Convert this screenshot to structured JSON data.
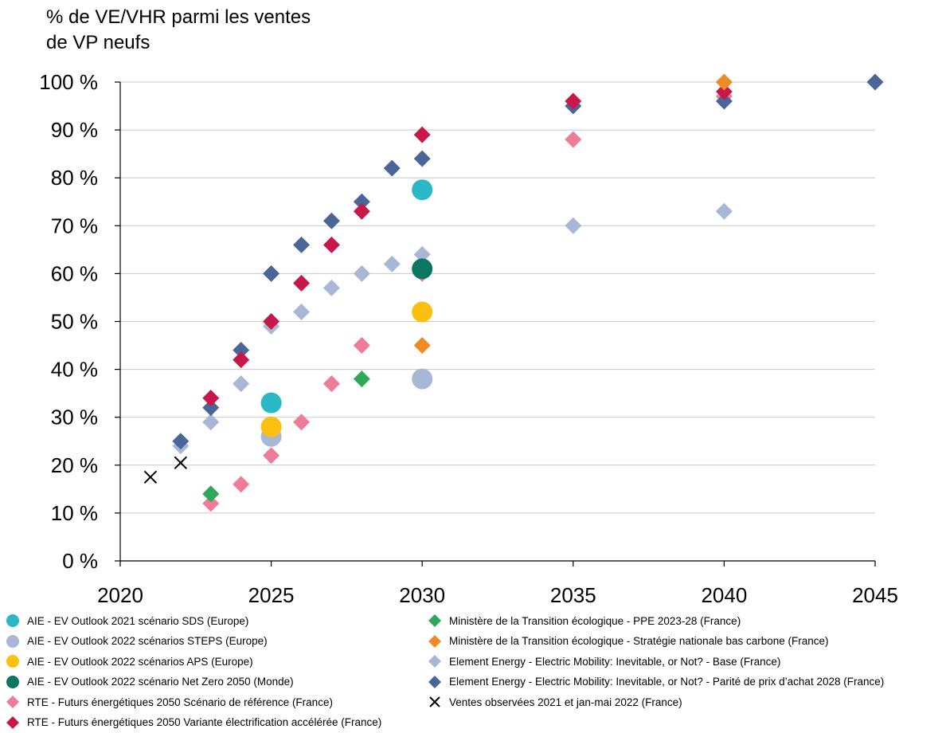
{
  "chart_data": {
    "type": "scatter",
    "title": "% de VE/VHR parmi les ventes\nde VP neufs",
    "xlabel": "",
    "ylabel": "",
    "xlim": [
      2020,
      2045
    ],
    "ylim": [
      0,
      100
    ],
    "x_ticks": [
      "2020",
      "2025",
      "2030",
      "2035",
      "2040",
      "2045"
    ],
    "y_ticks": [
      "0 %",
      "10 %",
      "20 %",
      "30 %",
      "40 %",
      "50 %",
      "60 %",
      "70 %",
      "80 %",
      "90 %",
      "100 %"
    ],
    "grid": "horizontal",
    "legend_position": "bottom",
    "series": [
      {
        "name": "AIE - EV Outlook 2021 scénario SDS (Europe)",
        "marker": "circle",
        "color": "#2ab7c6",
        "points": [
          [
            2025,
            33
          ],
          [
            2030,
            77.5
          ]
        ]
      },
      {
        "name": "AIE - EV Outlook 2022 scénarios STEPS (Europe)",
        "marker": "circle",
        "color": "#a9b7d6",
        "points": [
          [
            2025,
            26
          ],
          [
            2030,
            38
          ]
        ]
      },
      {
        "name": "AIE - EV Outlook 2022 scénarios APS (Europe)",
        "marker": "circle",
        "color": "#fac010",
        "points": [
          [
            2025,
            28
          ],
          [
            2030,
            52
          ]
        ]
      },
      {
        "name": "AIE - EV Outlook 2022 scénario Net Zero 2050 (Monde)",
        "marker": "circle",
        "color": "#0b7761",
        "points": [
          [
            2030,
            61
          ]
        ]
      },
      {
        "name": "RTE - Futurs énergétiques 2050 Scénario de référence (France)",
        "marker": "diamond",
        "color": "#ee7b9a",
        "points": [
          [
            2023,
            12
          ],
          [
            2024,
            16
          ],
          [
            2025,
            22
          ],
          [
            2026,
            29
          ],
          [
            2027,
            37
          ],
          [
            2028,
            45
          ],
          [
            2030,
            60
          ],
          [
            2035,
            88
          ],
          [
            2040,
            97
          ]
        ]
      },
      {
        "name": "RTE - Futurs énergétiques 2050 Variante électrification accélérée (France)",
        "marker": "diamond",
        "color": "#c8184a",
        "points": [
          [
            2023,
            34
          ],
          [
            2024,
            42
          ],
          [
            2025,
            50
          ],
          [
            2026,
            58
          ],
          [
            2027,
            66
          ],
          [
            2028,
            73
          ],
          [
            2030,
            89
          ],
          [
            2035,
            96
          ],
          [
            2040,
            98
          ]
        ]
      },
      {
        "name": "Ministère de la Transition écologique - PPE 2023-28 (France)",
        "marker": "diamond",
        "color": "#2ea85b",
        "points": [
          [
            2023,
            14
          ],
          [
            2028,
            38
          ]
        ]
      },
      {
        "name": "Ministère de la Transition écologique - Stratégie nationale bas carbone (France)",
        "marker": "diamond",
        "color": "#f08a24",
        "points": [
          [
            2030,
            45
          ],
          [
            2040,
            100
          ]
        ]
      },
      {
        "name": "Element Energy - Electric Mobility: Inevitable, or Not? - Base (France)",
        "marker": "diamond",
        "color": "#a9b7d6",
        "points": [
          [
            2022,
            24
          ],
          [
            2023,
            29
          ],
          [
            2024,
            37
          ],
          [
            2025,
            49
          ],
          [
            2026,
            52
          ],
          [
            2027,
            57
          ],
          [
            2028,
            60
          ],
          [
            2029,
            62
          ],
          [
            2030,
            64
          ],
          [
            2035,
            70
          ],
          [
            2040,
            73
          ]
        ]
      },
      {
        "name": "Element Energy - Electric Mobility: Inevitable, or Not? - Parité de prix d’achat 2028 (France)",
        "marker": "diamond",
        "color": "#4a6699",
        "points": [
          [
            2022,
            25
          ],
          [
            2023,
            32
          ],
          [
            2024,
            44
          ],
          [
            2025,
            60
          ],
          [
            2026,
            66
          ],
          [
            2027,
            71
          ],
          [
            2028,
            75
          ],
          [
            2029,
            82
          ],
          [
            2030,
            84
          ],
          [
            2035,
            95
          ],
          [
            2040,
            96
          ],
          [
            2045,
            100
          ]
        ]
      },
      {
        "name": "Ventes observées 2021 et jan-mai 2022 (France)",
        "marker": "cross",
        "color": "#000000",
        "points": [
          [
            2021,
            17.5
          ],
          [
            2022,
            20.5
          ]
        ]
      }
    ],
    "legend_order": [
      0,
      6,
      1,
      7,
      2,
      8,
      3,
      9,
      4,
      10,
      5
    ]
  }
}
